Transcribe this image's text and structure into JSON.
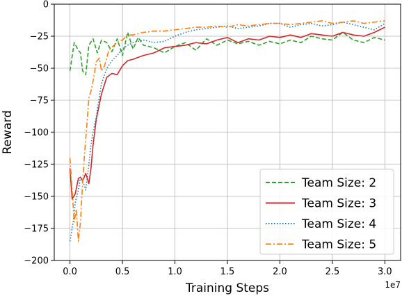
{
  "chart_data": {
    "type": "line",
    "xlabel": "Training Steps",
    "ylabel": "Reward",
    "x_offset_label": "1e7",
    "xlim": [
      -0.15,
      3.15
    ],
    "ylim": [
      -200,
      0
    ],
    "xticks": [
      0.0,
      0.5,
      1.0,
      1.5,
      2.0,
      2.5,
      3.0
    ],
    "xtick_labels": [
      "0.0",
      "0.5",
      "1.0",
      "1.5",
      "2.0",
      "2.5",
      "3.0"
    ],
    "yticks": [
      0,
      -25,
      -50,
      -75,
      -100,
      -125,
      -150,
      -175,
      -200
    ],
    "ytick_labels": [
      "0",
      "−25",
      "−50",
      "−75",
      "−100",
      "−125",
      "−150",
      "−175",
      "−200"
    ],
    "grid": true,
    "legend_position": "bottom-right",
    "series": [
      {
        "name": "Team Size: 2",
        "color": "#2ca02c",
        "style": "dashed",
        "points": [
          [
            0.0,
            -52
          ],
          [
            0.04,
            -30
          ],
          [
            0.08,
            -36
          ],
          [
            0.1,
            -38
          ],
          [
            0.12,
            -52
          ],
          [
            0.15,
            -55
          ],
          [
            0.18,
            -32
          ],
          [
            0.22,
            -27
          ],
          [
            0.26,
            -38
          ],
          [
            0.3,
            -28
          ],
          [
            0.35,
            -30
          ],
          [
            0.4,
            -37
          ],
          [
            0.45,
            -27
          ],
          [
            0.5,
            -40
          ],
          [
            0.55,
            -22
          ],
          [
            0.6,
            -35
          ],
          [
            0.65,
            -26
          ],
          [
            0.7,
            -32
          ],
          [
            0.8,
            -34
          ],
          [
            0.9,
            -38
          ],
          [
            1.0,
            -33
          ],
          [
            1.1,
            -30
          ],
          [
            1.2,
            -36
          ],
          [
            1.3,
            -27
          ],
          [
            1.4,
            -32
          ],
          [
            1.5,
            -28
          ],
          [
            1.6,
            -31
          ],
          [
            1.7,
            -29
          ],
          [
            1.8,
            -32
          ],
          [
            1.9,
            -29
          ],
          [
            2.0,
            -31
          ],
          [
            2.1,
            -28
          ],
          [
            2.2,
            -30
          ],
          [
            2.3,
            -25
          ],
          [
            2.4,
            -27
          ],
          [
            2.5,
            -28
          ],
          [
            2.6,
            -22
          ],
          [
            2.7,
            -28
          ],
          [
            2.8,
            -30
          ],
          [
            2.9,
            -26
          ],
          [
            3.0,
            -28
          ]
        ]
      },
      {
        "name": "Team Size: 3",
        "color": "#d62728",
        "style": "solid",
        "points": [
          [
            0.0,
            -128
          ],
          [
            0.02,
            -152
          ],
          [
            0.05,
            -148
          ],
          [
            0.08,
            -136
          ],
          [
            0.1,
            -135
          ],
          [
            0.12,
            -138
          ],
          [
            0.15,
            -132
          ],
          [
            0.18,
            -140
          ],
          [
            0.2,
            -128
          ],
          [
            0.22,
            -110
          ],
          [
            0.25,
            -90
          ],
          [
            0.28,
            -78
          ],
          [
            0.3,
            -70
          ],
          [
            0.35,
            -57
          ],
          [
            0.4,
            -54
          ],
          [
            0.45,
            -55
          ],
          [
            0.5,
            -48
          ],
          [
            0.55,
            -44
          ],
          [
            0.6,
            -43
          ],
          [
            0.7,
            -40
          ],
          [
            0.8,
            -38
          ],
          [
            0.9,
            -34
          ],
          [
            1.0,
            -33
          ],
          [
            1.1,
            -32
          ],
          [
            1.2,
            -30
          ],
          [
            1.3,
            -31
          ],
          [
            1.4,
            -28
          ],
          [
            1.5,
            -26
          ],
          [
            1.6,
            -30
          ],
          [
            1.7,
            -27
          ],
          [
            1.8,
            -28
          ],
          [
            1.9,
            -25
          ],
          [
            2.0,
            -26
          ],
          [
            2.1,
            -24
          ],
          [
            2.2,
            -26
          ],
          [
            2.3,
            -23
          ],
          [
            2.4,
            -24
          ],
          [
            2.5,
            -25
          ],
          [
            2.6,
            -22
          ],
          [
            2.7,
            -24
          ],
          [
            2.8,
            -25
          ],
          [
            2.9,
            -22
          ],
          [
            3.0,
            -18
          ]
        ]
      },
      {
        "name": "Team Size: 4",
        "color": "#1f77b4",
        "style": "dotted",
        "points": [
          [
            0.0,
            -185
          ],
          [
            0.03,
            -170
          ],
          [
            0.05,
            -155
          ],
          [
            0.08,
            -145
          ],
          [
            0.1,
            -135
          ],
          [
            0.13,
            -140
          ],
          [
            0.15,
            -145
          ],
          [
            0.18,
            -125
          ],
          [
            0.2,
            -110
          ],
          [
            0.22,
            -100
          ],
          [
            0.25,
            -88
          ],
          [
            0.28,
            -72
          ],
          [
            0.3,
            -62
          ],
          [
            0.35,
            -50
          ],
          [
            0.4,
            -44
          ],
          [
            0.45,
            -40
          ],
          [
            0.5,
            -35
          ],
          [
            0.55,
            -32
          ],
          [
            0.6,
            -30
          ],
          [
            0.7,
            -28
          ],
          [
            0.8,
            -30
          ],
          [
            0.9,
            -29
          ],
          [
            1.0,
            -25
          ],
          [
            1.1,
            -22
          ],
          [
            1.2,
            -20
          ],
          [
            1.3,
            -19
          ],
          [
            1.4,
            -18
          ],
          [
            1.5,
            -17
          ],
          [
            1.6,
            -19
          ],
          [
            1.7,
            -18
          ],
          [
            1.8,
            -17
          ],
          [
            1.9,
            -15
          ],
          [
            2.0,
            -15
          ],
          [
            2.1,
            -18
          ],
          [
            2.2,
            -16
          ],
          [
            2.3,
            -15
          ],
          [
            2.4,
            -17
          ],
          [
            2.5,
            -16
          ],
          [
            2.6,
            -14
          ],
          [
            2.7,
            -16
          ],
          [
            2.8,
            -18
          ],
          [
            2.9,
            -20
          ],
          [
            3.0,
            -15
          ]
        ]
      },
      {
        "name": "Team Size: 5",
        "color": "#ff7f0e",
        "style": "dashdot",
        "points": [
          [
            0.0,
            -120
          ],
          [
            0.02,
            -145
          ],
          [
            0.04,
            -170
          ],
          [
            0.06,
            -160
          ],
          [
            0.08,
            -185
          ],
          [
            0.1,
            -170
          ],
          [
            0.12,
            -140
          ],
          [
            0.14,
            -115
          ],
          [
            0.16,
            -95
          ],
          [
            0.18,
            -73
          ],
          [
            0.2,
            -68
          ],
          [
            0.22,
            -60
          ],
          [
            0.25,
            -45
          ],
          [
            0.28,
            -42
          ],
          [
            0.3,
            -52
          ],
          [
            0.33,
            -48
          ],
          [
            0.37,
            -36
          ],
          [
            0.42,
            -32
          ],
          [
            0.46,
            -29
          ],
          [
            0.5,
            -28
          ],
          [
            0.55,
            -24
          ],
          [
            0.6,
            -24
          ],
          [
            0.7,
            -22
          ],
          [
            0.8,
            -21
          ],
          [
            0.9,
            -21
          ],
          [
            1.0,
            -20
          ],
          [
            1.1,
            -19
          ],
          [
            1.2,
            -18
          ],
          [
            1.3,
            -18
          ],
          [
            1.4,
            -17
          ],
          [
            1.5,
            -18
          ],
          [
            1.6,
            -16
          ],
          [
            1.7,
            -17
          ],
          [
            1.8,
            -16
          ],
          [
            1.9,
            -15
          ],
          [
            2.0,
            -15
          ],
          [
            2.1,
            -16
          ],
          [
            2.2,
            -15
          ],
          [
            2.3,
            -14
          ],
          [
            2.4,
            -13
          ],
          [
            2.5,
            -15
          ],
          [
            2.6,
            -14
          ],
          [
            2.7,
            -13
          ],
          [
            2.8,
            -15
          ],
          [
            2.9,
            -14
          ],
          [
            3.0,
            -13
          ]
        ]
      }
    ]
  }
}
